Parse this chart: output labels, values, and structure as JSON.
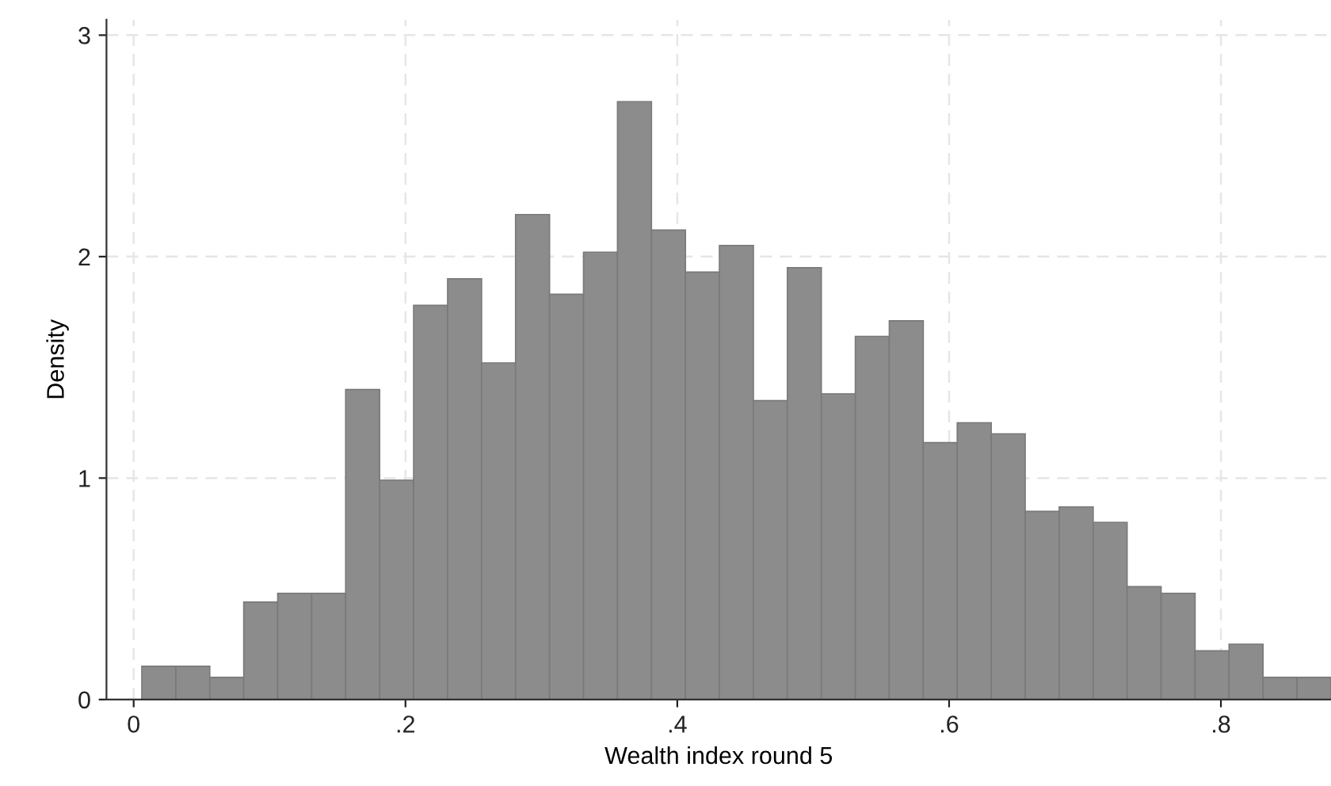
{
  "chart_data": {
    "type": "histogram",
    "xlabel": "Wealth index round 5",
    "ylabel": "Density",
    "bins": [
      0.006,
      0.031,
      0.056,
      0.081,
      0.106,
      0.131,
      0.156,
      0.181,
      0.206,
      0.231,
      0.256,
      0.281,
      0.306,
      0.331,
      0.356,
      0.381,
      0.406,
      0.431,
      0.456,
      0.481,
      0.506,
      0.531,
      0.556,
      0.581,
      0.606,
      0.631,
      0.656,
      0.681,
      0.706,
      0.731,
      0.756,
      0.781,
      0.806,
      0.831,
      0.856,
      0.881
    ],
    "values": [
      0.15,
      0.15,
      0.1,
      0.44,
      0.48,
      0.48,
      1.4,
      0.99,
      1.78,
      1.9,
      1.52,
      2.19,
      1.83,
      2.02,
      2.7,
      2.12,
      1.93,
      2.05,
      1.35,
      1.95,
      1.38,
      1.64,
      1.71,
      1.16,
      1.25,
      1.2,
      0.85,
      0.87,
      0.8,
      0.51,
      0.48,
      0.22,
      0.25,
      0.1,
      0.1
    ],
    "color": "#8c8c8c",
    "xlim": [
      -0.02,
      0.881
    ],
    "ylim": [
      0,
      3.07
    ],
    "xticks": [
      0,
      {
        "value": 0.2,
        "label": ".2"
      },
      {
        "value": 0.4,
        "label": ".4"
      },
      {
        "value": 0.6,
        "label": ".6"
      },
      {
        "value": 0.8,
        "label": ".8"
      }
    ],
    "yticks": [
      0,
      1,
      2,
      3
    ],
    "grid": true
  }
}
